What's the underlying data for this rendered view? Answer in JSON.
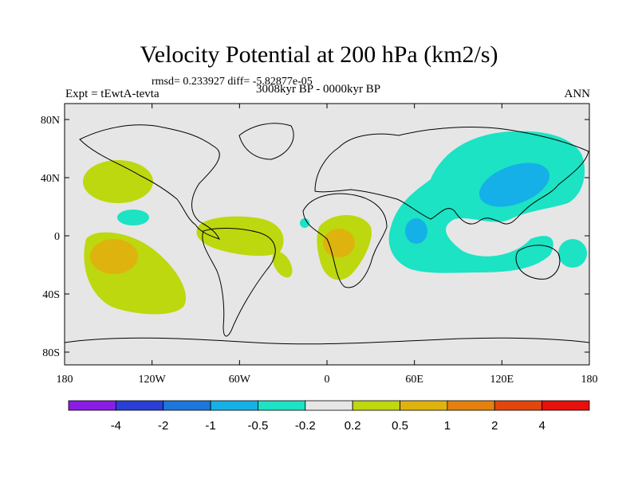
{
  "title": "Velocity Potential at 200 hPa (km2/s)",
  "stats": "rmsd= 0.233927  diff= -5.82877e-05",
  "experiment": "Expt = tEwtA-tevta",
  "period": "3008kyr BP - 0000kyr BP",
  "season": "ANN",
  "map": {
    "lat_ticks": [
      "80N",
      "40N",
      "0",
      "40S",
      "80S"
    ],
    "lon_ticks": [
      "180",
      "120W",
      "60W",
      "0",
      "60E",
      "120E",
      "180"
    ],
    "background_color": "#e6e6e6"
  },
  "colorbar": {
    "labels": [
      "-4",
      "-2",
      "-1",
      "-0.5",
      "-0.2",
      "0.2",
      "0.5",
      "1",
      "2",
      "4"
    ],
    "colors": [
      "#8a1ce6",
      "#2a3fd6",
      "#1b77dc",
      "#16b0e8",
      "#1be3c4",
      "#e6e6e6",
      "#bdd80e",
      "#dfb30e",
      "#e5810c",
      "#e2460c",
      "#e8100c"
    ]
  }
}
